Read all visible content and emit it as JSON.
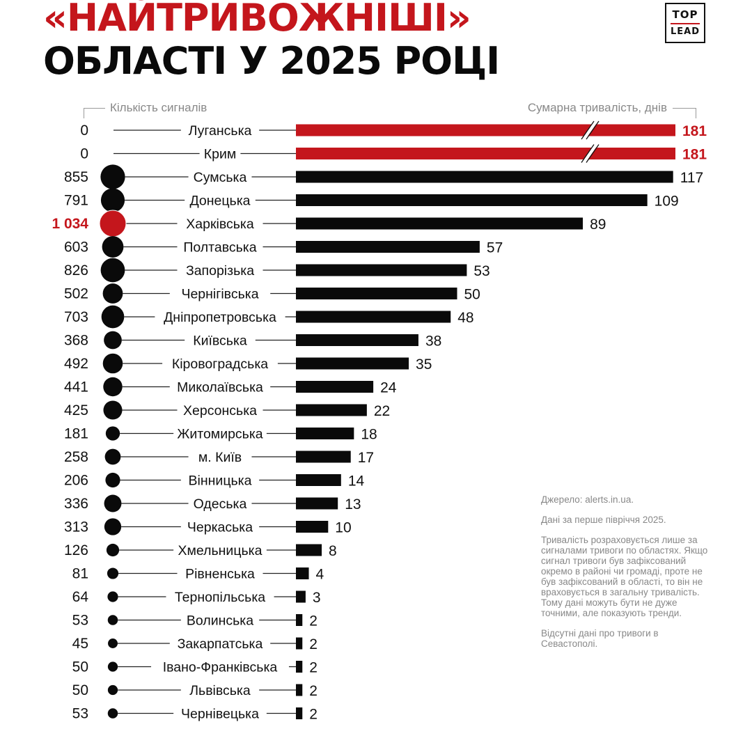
{
  "title": {
    "line1": "«НАЙТРИВОЖНІШІ»",
    "line2": "ОБЛАСТІ У 2025 РОЦІ"
  },
  "logo": {
    "line1": "TOP",
    "line2": "LEAD"
  },
  "headers": {
    "left": "Кількість сигналів",
    "right": "Сумарна тривалість, днів"
  },
  "notes": {
    "source": "Джерело: alerts.in.ua.",
    "period": "Дані за перше півріччя 2025.",
    "method": "Тривалість розраховується лише за сигналами тривоги по областях. Якщо сигнал тривоги був зафіксований окремо в районі чи громаді, проте не був зафіксований в області, то він не враховується в загальну тривалість. Тому дані можуть бути не дуже точними, але показують тренди.",
    "missing": "Відсутні дані про тривоги в Севастополі."
  },
  "colors": {
    "accent": "#c4161c",
    "bar": "#0a0a0a"
  },
  "chart_data": {
    "type": "bar",
    "orientation": "horizontal",
    "categories": [
      "Луганська",
      "Крим",
      "Сумська",
      "Донецька",
      "Харківська",
      "Полтавська",
      "Запорізька",
      "Чернігівська",
      "Дніпропетровська",
      "Київська",
      "Кіровоградська",
      "Миколаївська",
      "Херсонська",
      "Житомирська",
      "м. Київ",
      "Вінницька",
      "Одеська",
      "Черкаська",
      "Хмельницька",
      "Рівненська",
      "Тернопільська",
      "Волинська",
      "Закарпатська",
      "Івано-Франківська",
      "Львівська",
      "Чернівецька"
    ],
    "signals_labels": [
      "0",
      "0",
      "855",
      "791",
      "1 034",
      "603",
      "826",
      "502",
      "703",
      "368",
      "492",
      "441",
      "425",
      "181",
      "258",
      "206",
      "336",
      "313",
      "126",
      "81",
      "64",
      "53",
      "45",
      "50",
      "50",
      "53"
    ],
    "series": [
      {
        "values": [
          0,
          0,
          855,
          791,
          1034,
          603,
          826,
          502,
          703,
          368,
          492,
          441,
          425,
          181,
          258,
          206,
          336,
          313,
          126,
          81,
          64,
          53,
          45,
          50,
          50,
          53
        ]
      },
      {
        "values": [
          181,
          181,
          117,
          109,
          89,
          57,
          53,
          50,
          48,
          38,
          35,
          24,
          22,
          18,
          17,
          14,
          13,
          10,
          8,
          4,
          3,
          2,
          2,
          2,
          2,
          2
        ]
      }
    ],
    "highlight_duration": [
      0,
      1
    ],
    "highlight_signals": [
      4
    ],
    "broken_axis_bars": [
      0,
      1
    ]
  }
}
